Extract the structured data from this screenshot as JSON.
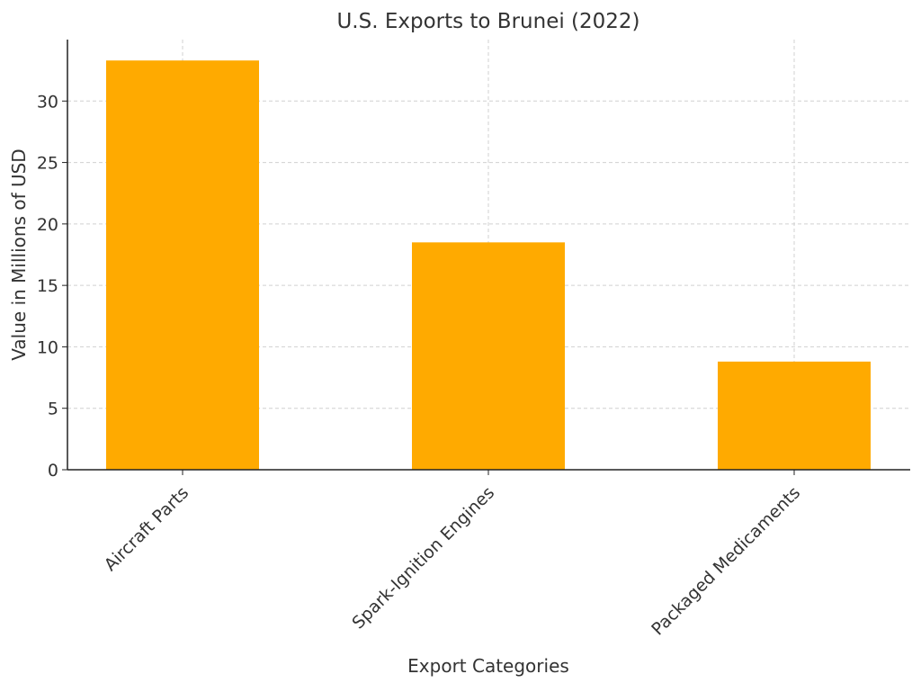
{
  "chart_data": {
    "type": "bar",
    "title": "U.S. Exports to Brunei (2022)",
    "xlabel": "Export Categories",
    "ylabel": "Value in Millions of USD",
    "categories": [
      "Aircraft Parts",
      "Spark-Ignition Engines",
      "Packaged Medicaments"
    ],
    "values": [
      33.3,
      18.5,
      8.8
    ],
    "ylim": [
      0,
      35
    ],
    "yticks": [
      0,
      5,
      10,
      15,
      20,
      25,
      30
    ],
    "bar_color": "#FFAA00",
    "grid": true,
    "legend": "none"
  }
}
